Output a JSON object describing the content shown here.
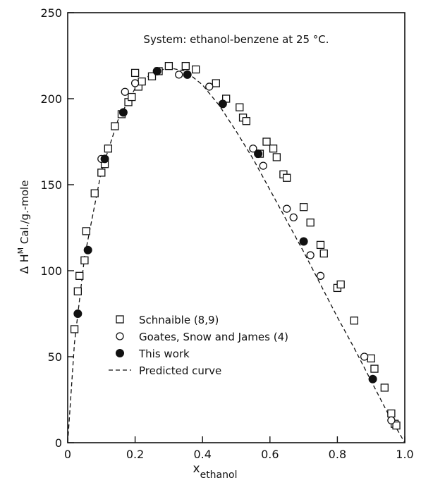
{
  "chart_data": {
    "type": "scatter",
    "title": "System: ethanol-benzene at 25 °C.",
    "xlabel": {
      "main": "x",
      "sub": "ethanol"
    },
    "ylabel": {
      "prefix": "Δ H",
      "sup": "M",
      "suffix": " Cal./g.-mole"
    },
    "xlim": [
      0,
      1
    ],
    "ylim": [
      0,
      250
    ],
    "grid": false,
    "legend_position": "lower-left",
    "x_ticks": [
      {
        "value": 0,
        "label": "0"
      },
      {
        "value": 0.2,
        "label": "0.2"
      },
      {
        "value": 0.4,
        "label": "0.4"
      },
      {
        "value": 0.6,
        "label": "0.6"
      },
      {
        "value": 0.8,
        "label": "0.8"
      },
      {
        "value": 1.0,
        "label": "1.0"
      }
    ],
    "y_ticks": [
      {
        "value": 0,
        "label": "0"
      },
      {
        "value": 50,
        "label": "50"
      },
      {
        "value": 100,
        "label": "100"
      },
      {
        "value": 150,
        "label": "150"
      },
      {
        "value": 200,
        "label": "200"
      },
      {
        "value": 250,
        "label": "250"
      }
    ],
    "series": [
      {
        "name": "Schnaible (8,9)",
        "marker": "open-square",
        "points": [
          [
            0.02,
            66
          ],
          [
            0.03,
            88
          ],
          [
            0.035,
            97
          ],
          [
            0.05,
            106
          ],
          [
            0.055,
            123
          ],
          [
            0.08,
            145
          ],
          [
            0.1,
            157
          ],
          [
            0.11,
            162
          ],
          [
            0.12,
            171
          ],
          [
            0.14,
            184
          ],
          [
            0.16,
            191
          ],
          [
            0.18,
            198
          ],
          [
            0.19,
            201
          ],
          [
            0.2,
            215
          ],
          [
            0.21,
            207
          ],
          [
            0.22,
            210
          ],
          [
            0.25,
            213
          ],
          [
            0.27,
            216
          ],
          [
            0.3,
            219
          ],
          [
            0.35,
            219
          ],
          [
            0.38,
            217
          ],
          [
            0.44,
            209
          ],
          [
            0.47,
            200
          ],
          [
            0.51,
            195
          ],
          [
            0.52,
            189
          ],
          [
            0.53,
            187
          ],
          [
            0.57,
            168
          ],
          [
            0.59,
            175
          ],
          [
            0.61,
            171
          ],
          [
            0.62,
            166
          ],
          [
            0.64,
            156
          ],
          [
            0.65,
            154
          ],
          [
            0.7,
            137
          ],
          [
            0.72,
            128
          ],
          [
            0.75,
            115
          ],
          [
            0.76,
            110
          ],
          [
            0.8,
            90
          ],
          [
            0.81,
            92
          ],
          [
            0.85,
            71
          ],
          [
            0.9,
            49
          ],
          [
            0.91,
            43
          ],
          [
            0.94,
            32
          ],
          [
            0.96,
            17
          ],
          [
            0.97,
            11
          ],
          [
            0.975,
            10
          ]
        ]
      },
      {
        "name": "Goates, Snow and James (4)",
        "marker": "open-circle",
        "points": [
          [
            0.1,
            165
          ],
          [
            0.17,
            204
          ],
          [
            0.2,
            209
          ],
          [
            0.33,
            214
          ],
          [
            0.42,
            207
          ],
          [
            0.55,
            171
          ],
          [
            0.58,
            161
          ],
          [
            0.65,
            136
          ],
          [
            0.67,
            131
          ],
          [
            0.72,
            109
          ],
          [
            0.75,
            97
          ],
          [
            0.88,
            50
          ],
          [
            0.96,
            13
          ]
        ]
      },
      {
        "name": "This work",
        "marker": "filled-circle",
        "points": [
          [
            0.03,
            75
          ],
          [
            0.06,
            112
          ],
          [
            0.11,
            165
          ],
          [
            0.165,
            192
          ],
          [
            0.265,
            216
          ],
          [
            0.355,
            214
          ],
          [
            0.46,
            197
          ],
          [
            0.565,
            168
          ],
          [
            0.7,
            117
          ],
          [
            0.905,
            37
          ]
        ]
      },
      {
        "name": "Predicted curve",
        "marker": "dashed-line",
        "points": [
          [
            0,
            0
          ],
          [
            0.02,
            58
          ],
          [
            0.05,
            108
          ],
          [
            0.1,
            158
          ],
          [
            0.15,
            188
          ],
          [
            0.2,
            206
          ],
          [
            0.25,
            215
          ],
          [
            0.3,
            218
          ],
          [
            0.35,
            216
          ],
          [
            0.4,
            208
          ],
          [
            0.45,
            196
          ],
          [
            0.5,
            181
          ],
          [
            0.55,
            165
          ],
          [
            0.6,
            147
          ],
          [
            0.65,
            129
          ],
          [
            0.7,
            111
          ],
          [
            0.75,
            92
          ],
          [
            0.8,
            73
          ],
          [
            0.85,
            55
          ],
          [
            0.9,
            36
          ],
          [
            0.95,
            17
          ],
          [
            1.0,
            0
          ]
        ]
      }
    ],
    "legend": [
      {
        "label": "Schnaible (8,9)",
        "marker": "open-square"
      },
      {
        "label": "Goates, Snow and James (4)",
        "marker": "open-circle"
      },
      {
        "label": "This work",
        "marker": "filled-circle"
      },
      {
        "label": "Predicted curve",
        "marker": "dashed-line"
      }
    ]
  }
}
